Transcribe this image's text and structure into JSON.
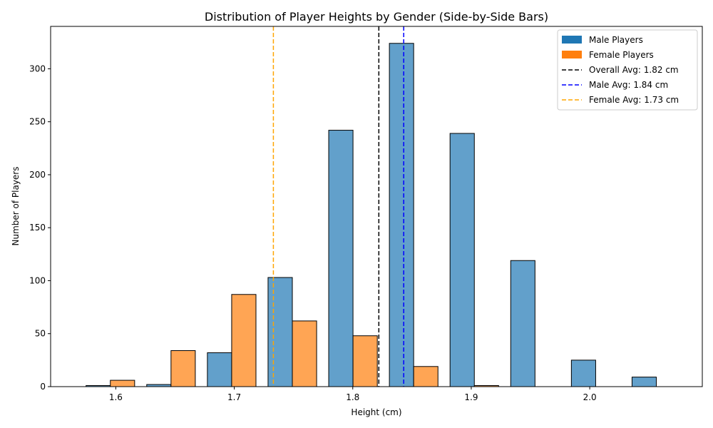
{
  "chart_data": {
    "type": "bar",
    "title": "Distribution of Player Heights by Gender (Side-by-Side Bars)",
    "xlabel": "Height (cm)",
    "ylabel": "Number of Players",
    "xlim": [
      1.545,
      2.095
    ],
    "ylim": [
      0,
      340
    ],
    "xticks": [
      1.6,
      1.7,
      1.8,
      1.9,
      2.0
    ],
    "xtick_labels": [
      "1.6",
      "1.7",
      "1.8",
      "1.9",
      "2.0"
    ],
    "yticks": [
      0,
      50,
      100,
      150,
      200,
      250,
      300
    ],
    "yticks_labels": [
      "0",
      "50",
      "100",
      "150",
      "200",
      "250",
      "300"
    ],
    "bin_width": 0.0512,
    "bar_width": 0.0205,
    "series": [
      {
        "name": "Male Players",
        "color": "#1f77b4",
        "bar_color": "#62a0cb",
        "x_left": [
          1.5749,
          1.6261,
          1.6773,
          1.7285,
          1.7797,
          1.8309,
          1.8821,
          1.9333,
          1.9845,
          2.0357
        ],
        "values": [
          1,
          2,
          32,
          103,
          242,
          324,
          239,
          119,
          25,
          9
        ]
      },
      {
        "name": "Female Players",
        "color": "#ff7f0e",
        "bar_color": "#ffa554",
        "x_left": [
          1.5954,
          1.6466,
          1.6978,
          1.749,
          1.8002,
          1.8514,
          1.9026,
          1.9538,
          2.005,
          2.0562
        ],
        "values": [
          6,
          34,
          87,
          62,
          48,
          19,
          1,
          0,
          0,
          0
        ]
      }
    ],
    "reference_lines": [
      {
        "label": "Overall Avg: 1.82 cm",
        "x": 1.822,
        "color": "#000000"
      },
      {
        "label": "Male Avg: 1.84 cm",
        "x": 1.843,
        "color": "#0000ff"
      },
      {
        "label": "Female Avg: 1.73 cm",
        "x": 1.733,
        "color": "#ffa500"
      }
    ],
    "legend_position": "top-right",
    "grid": false
  }
}
